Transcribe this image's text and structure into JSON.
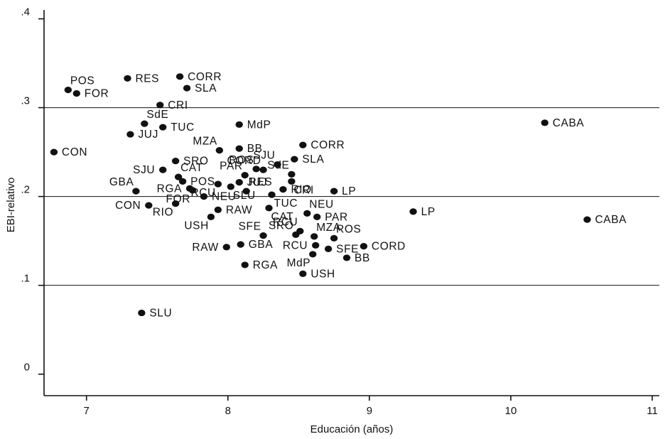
{
  "chart_data": {
    "type": "scatter",
    "title": "",
    "xlabel": "Educación (años)",
    "ylabel": "EBI-relativo",
    "xlim": [
      6.7,
      11.05
    ],
    "ylim": [
      -0.013,
      0.41
    ],
    "x_ticks": [
      7,
      8,
      9,
      10,
      11
    ],
    "y_ticks": [
      0,
      0.1,
      0.2,
      0.3,
      0.4
    ],
    "x_tick_labels": [
      "7",
      "8",
      "9",
      "10",
      "11"
    ],
    "y_tick_labels": [
      "0",
      ".1",
      ".2",
      ".3",
      ".4"
    ],
    "grid_y": [
      0.1,
      0.2,
      0.3
    ],
    "grid_x": false,
    "legend": "none",
    "colors": {
      "point": "#111111",
      "axis": "#111111",
      "grid": "#111111"
    },
    "points": [
      {
        "label": "POS",
        "x": 6.87,
        "y": 0.32,
        "lp": "above-right"
      },
      {
        "label": "FOR",
        "x": 6.93,
        "y": 0.316,
        "lp": "right"
      },
      {
        "label": "RES",
        "x": 7.29,
        "y": 0.333,
        "lp": "right"
      },
      {
        "label": "CORR",
        "x": 7.66,
        "y": 0.335,
        "lp": "right"
      },
      {
        "label": "SLA",
        "x": 7.71,
        "y": 0.322,
        "lp": "right"
      },
      {
        "label": "CRI",
        "x": 7.52,
        "y": 0.303,
        "lp": "right"
      },
      {
        "label": "SdE",
        "x": 7.41,
        "y": 0.282,
        "lp": "above-right"
      },
      {
        "label": "TUC",
        "x": 7.54,
        "y": 0.278,
        "lp": "right"
      },
      {
        "label": "JUJ",
        "x": 7.31,
        "y": 0.27,
        "lp": "right"
      },
      {
        "label": "CON",
        "x": 6.77,
        "y": 0.25,
        "lp": "right"
      },
      {
        "label": "MdP",
        "x": 8.08,
        "y": 0.281,
        "lp": "right"
      },
      {
        "label": "CABA",
        "x": 10.24,
        "y": 0.283,
        "lp": "right"
      },
      {
        "label": "CORR",
        "x": 8.53,
        "y": 0.258,
        "lp": "right"
      },
      {
        "label": "MZA",
        "x": 7.94,
        "y": 0.252,
        "lp": "above-left"
      },
      {
        "label": "BB",
        "x": 8.08,
        "y": 0.254,
        "lp": "right"
      },
      {
        "label": "SLA",
        "x": 8.47,
        "y": 0.242,
        "lp": "right"
      },
      {
        "label": "SRO",
        "x": 7.63,
        "y": 0.24,
        "lp": "right"
      },
      {
        "label": "CORD",
        "x": 8.25,
        "y": 0.23,
        "lp": "above-left"
      },
      {
        "label": "SJU",
        "x": 8.35,
        "y": 0.236,
        "lp": "above-left"
      },
      {
        "label": "SdE",
        "x": 8.45,
        "y": 0.225,
        "lp": "above-left"
      },
      {
        "label": "ROS",
        "x": 8.2,
        "y": 0.231,
        "lp": "above-left"
      },
      {
        "label": "SJU",
        "x": 7.54,
        "y": 0.23,
        "lp": "left"
      },
      {
        "label": "CAT",
        "x": 7.65,
        "y": 0.222,
        "lp": "above-right"
      },
      {
        "label": "PAR",
        "x": 8.12,
        "y": 0.224,
        "lp": "above-left"
      },
      {
        "label": "JUJ",
        "x": 8.08,
        "y": 0.216,
        "lp": "right"
      },
      {
        "label": "CRI",
        "x": 8.45,
        "y": 0.217,
        "lp": "below-right"
      },
      {
        "label": "POS",
        "x": 7.68,
        "y": 0.217,
        "lp": "right"
      },
      {
        "label": "RES",
        "x": 8.13,
        "y": 0.206,
        "lp": "above-right"
      },
      {
        "label": "RIO",
        "x": 8.39,
        "y": 0.208,
        "lp": "right"
      },
      {
        "label": "LP",
        "x": 8.75,
        "y": 0.206,
        "lp": "right"
      },
      {
        "label": "GBA",
        "x": 7.35,
        "y": 0.206,
        "lp": "above-left"
      },
      {
        "label": "RGA",
        "x": 7.73,
        "y": 0.209,
        "lp": "left"
      },
      {
        "label": "RCU",
        "x": 7.93,
        "y": 0.214,
        "lp": "below-left"
      },
      {
        "label": "NEU",
        "x": 7.83,
        "y": 0.2,
        "lp": "right"
      },
      {
        "label": "SLU",
        "x": 8.02,
        "y": 0.211,
        "lp": "below-right"
      },
      {
        "label": "TUC",
        "x": 8.31,
        "y": 0.202,
        "lp": "below-right"
      },
      {
        "label": "FOR",
        "x": 7.75,
        "y": 0.207,
        "lp": "below-left"
      },
      {
        "label": "CON",
        "x": 7.44,
        "y": 0.19,
        "lp": "left"
      },
      {
        "label": "RIO",
        "x": 7.63,
        "y": 0.192,
        "lp": "below-left"
      },
      {
        "label": "RAW",
        "x": 7.93,
        "y": 0.185,
        "lp": "right"
      },
      {
        "label": "NEU",
        "x": 8.56,
        "y": 0.181,
        "lp": "above-right"
      },
      {
        "label": "LP",
        "x": 9.31,
        "y": 0.183,
        "lp": "right"
      },
      {
        "label": "CAT",
        "x": 8.29,
        "y": 0.187,
        "lp": "below-right"
      },
      {
        "label": "PAR",
        "x": 8.63,
        "y": 0.177,
        "lp": "right"
      },
      {
        "label": "USH",
        "x": 7.88,
        "y": 0.177,
        "lp": "below-left"
      },
      {
        "label": "CABA",
        "x": 10.54,
        "y": 0.174,
        "lp": "right"
      },
      {
        "label": "SFE",
        "x": 8.25,
        "y": 0.156,
        "lp": "above-left"
      },
      {
        "label": "SRO",
        "x": 8.48,
        "y": 0.157,
        "lp": "above-left"
      },
      {
        "label": "RCU",
        "x": 8.51,
        "y": 0.161,
        "lp": "above-left"
      },
      {
        "label": "MZA",
        "x": 8.61,
        "y": 0.155,
        "lp": "above-right"
      },
      {
        "label": "ROS",
        "x": 8.75,
        "y": 0.153,
        "lp": "above-right"
      },
      {
        "label": "GBA",
        "x": 8.09,
        "y": 0.146,
        "lp": "right"
      },
      {
        "label": "RAW",
        "x": 7.99,
        "y": 0.143,
        "lp": "left"
      },
      {
        "label": "RCU",
        "x": 8.62,
        "y": 0.145,
        "lp": "left"
      },
      {
        "label": "SFE",
        "x": 8.71,
        "y": 0.141,
        "lp": "right"
      },
      {
        "label": "CORD",
        "x": 8.96,
        "y": 0.144,
        "lp": "right"
      },
      {
        "label": "MdP",
        "x": 8.6,
        "y": 0.135,
        "lp": "below-left"
      },
      {
        "label": "BB",
        "x": 8.84,
        "y": 0.131,
        "lp": "right"
      },
      {
        "label": "RGA",
        "x": 8.12,
        "y": 0.123,
        "lp": "right"
      },
      {
        "label": "USH",
        "x": 8.53,
        "y": 0.113,
        "lp": "right"
      },
      {
        "label": "SLU",
        "x": 7.39,
        "y": 0.069,
        "lp": "right"
      }
    ]
  }
}
